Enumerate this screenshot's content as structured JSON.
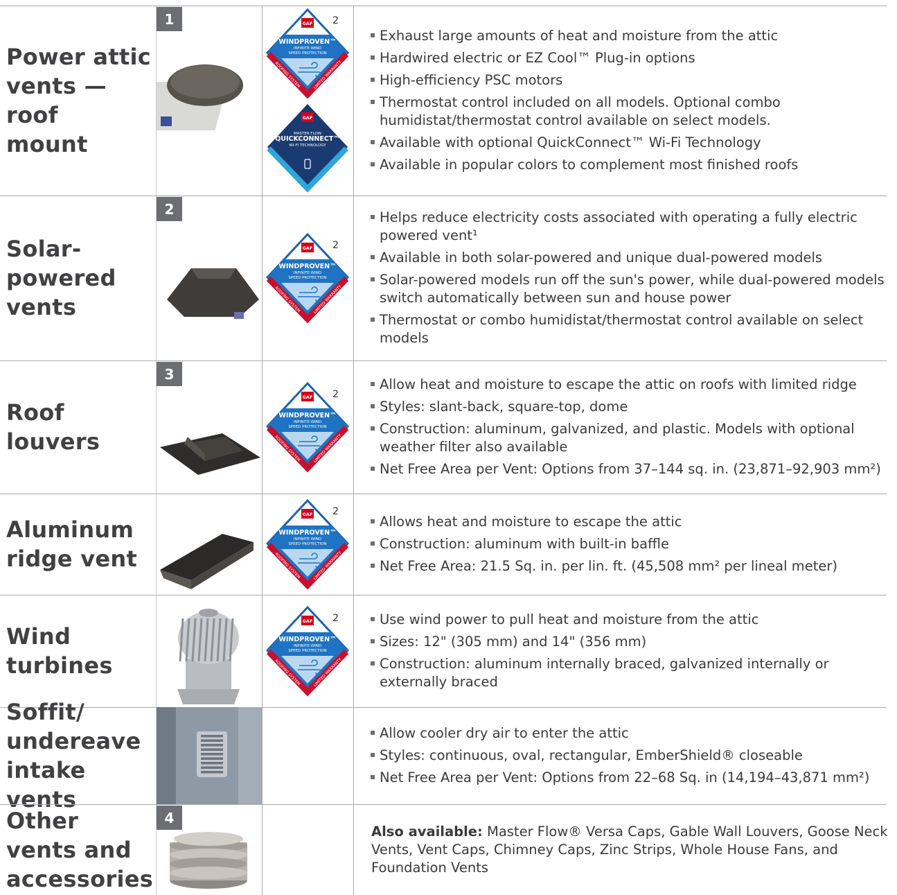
{
  "rows": [
    {
      "name_lines": [
        "Power attic",
        "vents — roof",
        "mount"
      ],
      "number": "1",
      "badges": [
        {
          "kind": "windproven",
          "brand": "GAF",
          "lines": [
            "WINDPROVEN™",
            "INFINITE WIND",
            "SPEED PROTECTION"
          ],
          "edge_left": "ROOFING SYSTEM",
          "edge_right": "LIMITED WARRANTY",
          "footnote": "2"
        },
        {
          "kind": "quickconnect",
          "brand": "GAF",
          "lines": [
            "MASTER FLOW",
            "QUICKCONNECT™",
            "WI-FI TECHNOLOGY"
          ]
        }
      ],
      "bullets": [
        "Exhaust large amounts of heat and moisture from the attic",
        "Hardwired electric or EZ Cool™ Plug-in options",
        "High-efficiency PSC motors",
        "Thermostat control included on all models. Optional combo humidistat/thermostat control available on select models.",
        "Available with optional QuickConnect™ Wi-Fi Technology",
        "Available in popular colors to complement most finished roofs"
      ]
    },
    {
      "name_lines": [
        "Solar-",
        "powered",
        "vents"
      ],
      "number": "2",
      "badges": [
        {
          "kind": "windproven",
          "brand": "GAF",
          "lines": [
            "WINDPROVEN™",
            "INFINITE WIND",
            "SPEED PROTECTION"
          ],
          "edge_left": "ROOFING SYSTEM",
          "edge_right": "LIMITED WARRANTY",
          "footnote": "2"
        }
      ],
      "bullets": [
        "Helps reduce electricity costs associated with operating a fully electric powered vent¹",
        "Available in both solar-powered and unique dual-powered models",
        "Solar-powered models run off the sun's power, while dual-powered models switch automatically between sun and house power",
        "Thermostat or combo humidistat/thermostat control available on select models"
      ]
    },
    {
      "name_lines": [
        "Roof",
        "louvers"
      ],
      "number": "3",
      "badges": [
        {
          "kind": "windproven",
          "brand": "GAF",
          "lines": [
            "WINDPROVEN™",
            "INFINITE WIND",
            "SPEED PROTECTION"
          ],
          "edge_left": "ROOFING SYSTEM",
          "edge_right": "LIMITED WARRANTY",
          "footnote": "2"
        }
      ],
      "bullets": [
        "Allow heat and moisture to escape the attic on roofs with limited ridge",
        "Styles: slant-back, square-top, dome",
        "Construction: aluminum, galvanized, and plastic. Models with optional weather filter also available",
        "Net Free Area per Vent: Options from 37–144 sq. in. (23,871–92,903 mm²)"
      ]
    },
    {
      "name_lines": [
        "Aluminum",
        "ridge vent"
      ],
      "badges": [
        {
          "kind": "windproven",
          "brand": "GAF",
          "lines": [
            "WINDPROVEN™",
            "INFINITE WIND",
            "SPEED PROTECTION"
          ],
          "edge_left": "ROOFING SYSTEM",
          "edge_right": "LIMITED WARRANTY",
          "footnote": "2"
        }
      ],
      "bullets": [
        "Allows heat and moisture to escape the attic",
        "Construction: aluminum with built-in baffle",
        "Net Free Area:  21.5 Sq. in. per lin. ft. (45,508 mm² per lineal meter)"
      ]
    },
    {
      "name_lines": [
        "Wind",
        "turbines"
      ],
      "badges": [
        {
          "kind": "windproven",
          "brand": "GAF",
          "lines": [
            "WINDPROVEN™",
            "INFINITE WIND",
            "SPEED PROTECTION"
          ],
          "edge_left": "ROOFING SYSTEM",
          "edge_right": "LIMITED WARRANTY",
          "footnote": "2"
        }
      ],
      "bullets": [
        "Use wind power to pull heat and moisture from the attic",
        "Sizes: 12\" (305 mm) and 14\" (356 mm)",
        "Construction: aluminum internally braced, galvanized internally or externally braced"
      ]
    },
    {
      "name_lines": [
        "Soffit/",
        "undereave",
        "intake vents"
      ],
      "bullets": [
        "Allow cooler dry air to enter the attic",
        "Styles: continuous, oval, rectangular, EmberShield® closeable",
        "Net Free Area per Vent: Options from 22–68 Sq. in (14,194–43,871 mm²)"
      ]
    },
    {
      "name_lines": [
        "Other",
        "vents and",
        "accessories"
      ],
      "number": "4",
      "note": {
        "lead": "Also available:",
        "text": "Master Flow® Versa Caps, Gable Wall Louvers, Goose Neck Vents, Vent Caps, Chimney Caps, Zinc Strips, Whole House Fans, and Foundation Vents"
      }
    }
  ]
}
